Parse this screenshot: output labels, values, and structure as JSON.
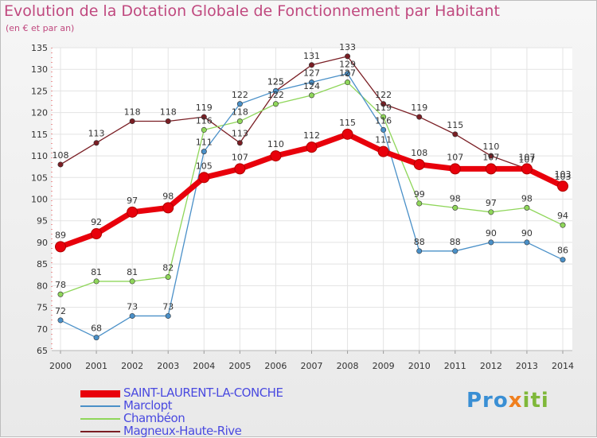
{
  "chart_data": {
    "type": "line",
    "title": "Evolution de la Dotation Globale de Fonctionnement par Habitant",
    "subtitle": "(en € et par an)",
    "x": [
      "2000",
      "2001",
      "2002",
      "2003",
      "2004",
      "2005",
      "2006",
      "2007",
      "2008",
      "2009",
      "2010",
      "2011",
      "2012",
      "2013",
      "2014"
    ],
    "ylim": [
      65,
      135
    ],
    "yticks": [
      65,
      70,
      75,
      80,
      85,
      90,
      95,
      100,
      105,
      110,
      115,
      120,
      125,
      130,
      135
    ],
    "grid": true,
    "series": [
      {
        "name": "Magneux-Haute-Rive",
        "color": "#7a1e24",
        "values": [
          108,
          113,
          118,
          118,
          119,
          113,
          125,
          131,
          133,
          122,
          119,
          115,
          110,
          107,
          103
        ]
      },
      {
        "name": "Chambéon",
        "color": "#8fd65a",
        "values": [
          78,
          81,
          81,
          82,
          116,
          118,
          122,
          124,
          127,
          119,
          99,
          98,
          97,
          98,
          94
        ]
      },
      {
        "name": "Marclopt",
        "color": "#4a90c8",
        "values": [
          72,
          68,
          73,
          73,
          111,
          122,
          125,
          127,
          129,
          116,
          88,
          88,
          90,
          90,
          86
        ]
      },
      {
        "name": "SAINT-LAURENT-LA-CONCHE",
        "color": "#e8000b",
        "values": [
          89,
          92,
          97,
          98,
          105,
          107,
          110,
          112,
          115,
          111,
          108,
          107,
          107,
          107,
          103
        ]
      }
    ],
    "legend": [
      "SAINT-LAURENT-LA-CONCHE",
      "Marclopt",
      "Chambéon",
      "Magneux-Haute-Rive"
    ]
  },
  "branding": {
    "p1": "Pro",
    "p2": "x",
    "p3": "iti"
  }
}
